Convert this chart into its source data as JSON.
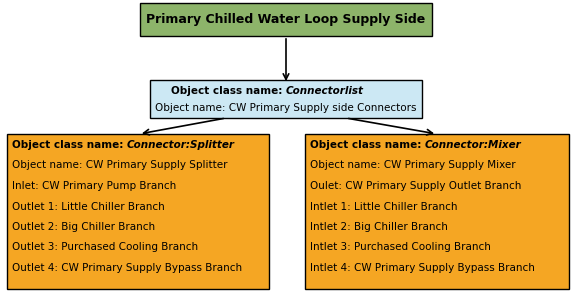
{
  "title_text": "Primary Chilled Water Loop Supply Side",
  "title_bg": "#8db46a",
  "title_border": "#000000",
  "middle_bg": "#cce8f4",
  "middle_border": "#000000",
  "middle_line1_bold": "Object class name: ",
  "middle_line1_italic": "Connectorlist",
  "middle_line2": "Object name: CW Primary Supply side Connectors",
  "left_bg": "#f5a623",
  "left_border": "#000000",
  "left_lines": [
    [
      "bold_italic",
      "Object class name: ",
      "Connector:Splitter"
    ],
    [
      "normal",
      "Object name: CW Primary Supply Splitter"
    ],
    [
      "normal",
      "Inlet: CW Primary Pump Branch"
    ],
    [
      "normal",
      "Outlet 1: Little Chiller Branch"
    ],
    [
      "normal",
      "Outlet 2: Big Chiller Branch"
    ],
    [
      "normal",
      "Outlet 3: Purchased Cooling Branch"
    ],
    [
      "normal",
      "Outlet 4: CW Primary Supply Bypass Branch"
    ]
  ],
  "right_bg": "#f5a623",
  "right_border": "#000000",
  "right_lines": [
    [
      "bold_italic",
      "Object class name: ",
      "Connector:Mixer"
    ],
    [
      "normal",
      "Object name: CW Primary Supply Mixer"
    ],
    [
      "normal",
      "Oulet: CW Primary Supply Outlet Branch"
    ],
    [
      "normal",
      "Intlet 1: Little Chiller Branch"
    ],
    [
      "normal",
      "Intlet 2: Big Chiller Branch"
    ],
    [
      "normal",
      "Intlet 3: Purchased Cooling Branch"
    ],
    [
      "normal",
      "Intlet 4: CW Primary Supply Bypass Branch"
    ]
  ],
  "arrow_color": "#000000",
  "font_size": 7.5,
  "title_font_size": 9.0,
  "fig_width": 5.77,
  "fig_height": 2.94,
  "dpi": 100
}
